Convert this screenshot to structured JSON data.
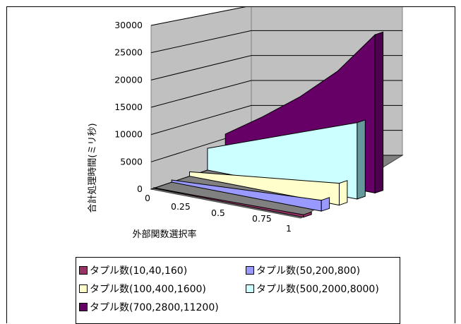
{
  "chart_data": {
    "type": "area",
    "style": "3d",
    "title": "",
    "xlabel": "外部関数選択率",
    "ylabel": "合計処理時間(ミリ秒)",
    "categories": [
      "0",
      "0.25",
      "0.5",
      "0.75",
      "1"
    ],
    "ylim": [
      0,
      30000
    ],
    "yticks": [
      "0",
      "5000",
      "10000",
      "15000",
      "20000",
      "25000",
      "30000"
    ],
    "grid": true,
    "legend_position": "bottom",
    "series": [
      {
        "name": "タプル数(10,40,160)",
        "color": "#993366",
        "values": [
          100,
          150,
          250,
          350,
          450
        ]
      },
      {
        "name": "タプル数(50,200,800)",
        "color": "#9999ff",
        "values": [
          400,
          800,
          1200,
          1600,
          2000
        ]
      },
      {
        "name": "タプル数(100,400,1600)",
        "color": "#ffffcc",
        "values": [
          800,
          1600,
          2400,
          3200,
          4000
        ]
      },
      {
        "name": "タプル数(500,2000,8000)",
        "color": "#ccffff",
        "values": [
          4000,
          6500,
          9000,
          11500,
          14000
        ]
      },
      {
        "name": "タプル数(700,2800,11200)",
        "color": "#660066",
        "values": [
          5500,
          10000,
          15000,
          21000,
          29000
        ]
      }
    ]
  }
}
